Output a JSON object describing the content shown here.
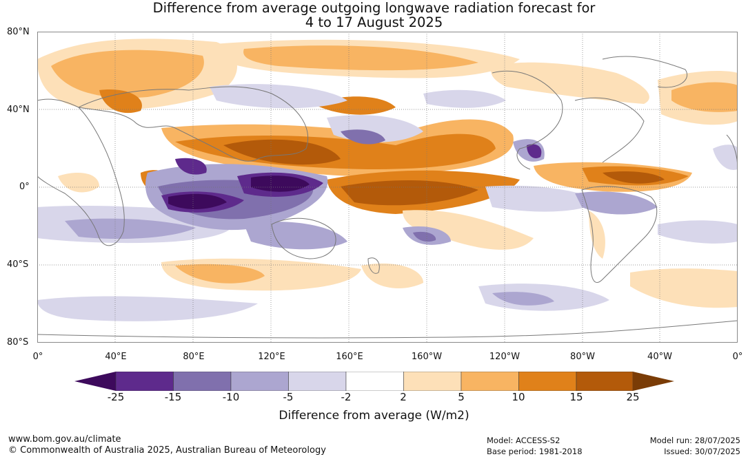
{
  "title_line1": "Difference from average outgoing longwave radiation forecast for",
  "title_line2": "4 to 17 August 2025",
  "lat_labels": [
    "80°N",
    "40°N",
    "0°",
    "40°S",
    "80°S"
  ],
  "lon_labels": [
    "0°",
    "40°E",
    "80°E",
    "120°E",
    "160°E",
    "160°W",
    "120°W",
    "80°W",
    "40°W",
    "0°"
  ],
  "colorbar": {
    "ticks": [
      "-25",
      "-15",
      "-10",
      "-5",
      "-2",
      "2",
      "5",
      "10",
      "15",
      "25"
    ],
    "colors": [
      "#3d0a5c",
      "#5e2a8c",
      "#8070ad",
      "#aca6d0",
      "#d8d6ea",
      "#ffffff",
      "#fde0b8",
      "#f8b462",
      "#e0811a",
      "#b35a0a",
      "#7a3c06"
    ],
    "label": "Difference from average (W/m2)"
  },
  "footer": {
    "url": "www.bom.gov.au/climate",
    "copyright": "© Commonwealth of Australia 2025, Australian Bureau of Meteorology",
    "model": "Model: ACCESS-S2",
    "base_period": "Base period: 1981-2018",
    "model_run": "Model run: 28/07/2025",
    "issued": "Issued: 30/07/2025"
  }
}
